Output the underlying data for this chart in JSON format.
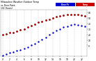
{
  "background_color": "#ffffff",
  "grid_color": "#aaaaaa",
  "temp_color": "#cc0000",
  "dew_color": "#0000cc",
  "heat_color": "#000000",
  "legend_temp_label": "Temp",
  "legend_dew_label": "Dew Pt",
  "marker_size": 1.5,
  "num_points": 24,
  "x_values": [
    0,
    1,
    2,
    3,
    4,
    5,
    6,
    7,
    8,
    9,
    10,
    11,
    12,
    13,
    14,
    15,
    16,
    17,
    18,
    19,
    20,
    21,
    22,
    23
  ],
  "temp_values": [
    20,
    21,
    23,
    24,
    26,
    28,
    30,
    33,
    36,
    39,
    42,
    44,
    46,
    48,
    50,
    52,
    54,
    55,
    56,
    57,
    57,
    56,
    55,
    54
  ],
  "dew_values": [
    -18,
    -16,
    -14,
    -12,
    -10,
    -8,
    -6,
    -3,
    0,
    3,
    7,
    11,
    15,
    19,
    23,
    27,
    30,
    33,
    35,
    37,
    38,
    37,
    36,
    35
  ],
  "heat_values": [
    20,
    21,
    23,
    24,
    26,
    28,
    30,
    33,
    36,
    39,
    42,
    44,
    46,
    48,
    50,
    52,
    54,
    55,
    56,
    57,
    57,
    56,
    55,
    54
  ],
  "ylim": [
    -20,
    65
  ],
  "yticks": [
    0,
    10,
    20,
    30,
    40,
    50,
    60
  ],
  "ytick_labels": [
    "0",
    "10",
    "20",
    "30",
    "40",
    "50",
    "60"
  ],
  "xtick_step": 2,
  "title_line1": "Milwaukee Weather",
  "title_line2": "Outdoor Temp",
  "title_line3": "vs Dew Point",
  "title_line4": "(24 Hours)"
}
